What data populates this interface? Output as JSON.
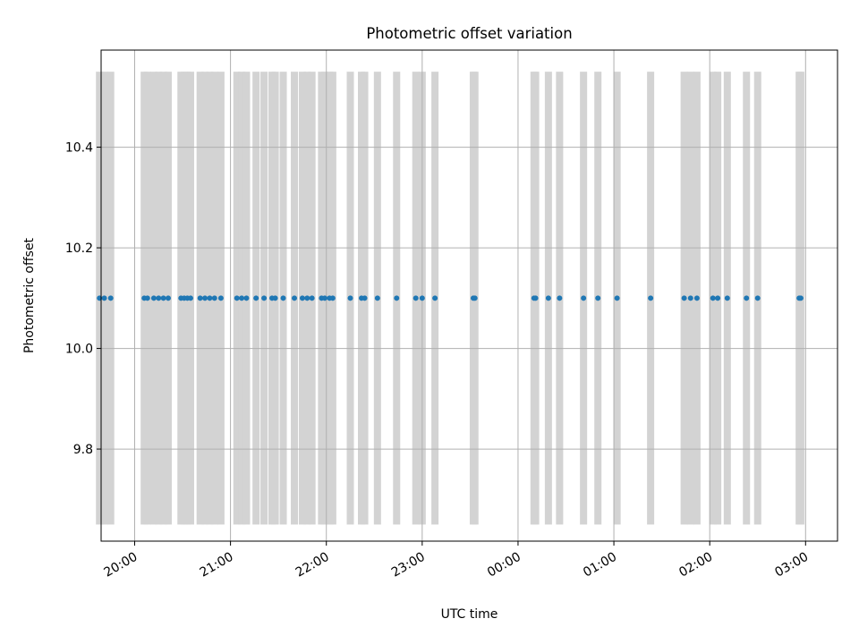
{
  "chart_data": {
    "type": "scatter",
    "title": "Photometric offset variation",
    "xlabel": "UTC time",
    "ylabel": "Photometric offset",
    "x_tick_labels": [
      "20:00",
      "21:00",
      "22:00",
      "23:00",
      "00:00",
      "01:00",
      "02:00",
      "03:00"
    ],
    "y_tick_labels": [
      "9.8",
      "10.0",
      "10.2",
      "10.4"
    ],
    "y_ticks": [
      9.8,
      10.0,
      10.2,
      10.4
    ],
    "ylim": [
      9.617,
      10.593
    ],
    "xlim": [
      "19:39",
      "03:20"
    ],
    "grid": true,
    "band_range": [
      9.65,
      10.55
    ],
    "series": [
      {
        "color": "#1f77b4",
        "points": [
          {
            "x": "19:38",
            "y": 10.1
          },
          {
            "x": "19:41",
            "y": 10.1
          },
          {
            "x": "19:45",
            "y": 10.1
          },
          {
            "x": "20:06",
            "y": 10.1
          },
          {
            "x": "20:08",
            "y": 10.1
          },
          {
            "x": "20:12",
            "y": 10.1
          },
          {
            "x": "20:15",
            "y": 10.1
          },
          {
            "x": "20:18",
            "y": 10.1
          },
          {
            "x": "20:21",
            "y": 10.1
          },
          {
            "x": "20:29",
            "y": 10.1
          },
          {
            "x": "20:31",
            "y": 10.1
          },
          {
            "x": "20:33",
            "y": 10.1
          },
          {
            "x": "20:35",
            "y": 10.1
          },
          {
            "x": "20:41",
            "y": 10.1
          },
          {
            "x": "20:44",
            "y": 10.1
          },
          {
            "x": "20:47",
            "y": 10.1
          },
          {
            "x": "20:50",
            "y": 10.1
          },
          {
            "x": "20:54",
            "y": 10.1
          },
          {
            "x": "21:04",
            "y": 10.1
          },
          {
            "x": "21:07",
            "y": 10.1
          },
          {
            "x": "21:10",
            "y": 10.1
          },
          {
            "x": "21:16",
            "y": 10.1
          },
          {
            "x": "21:21",
            "y": 10.1
          },
          {
            "x": "21:26",
            "y": 10.1
          },
          {
            "x": "21:28",
            "y": 10.1
          },
          {
            "x": "21:33",
            "y": 10.1
          },
          {
            "x": "21:40",
            "y": 10.1
          },
          {
            "x": "21:45",
            "y": 10.1
          },
          {
            "x": "21:48",
            "y": 10.1
          },
          {
            "x": "21:51",
            "y": 10.1
          },
          {
            "x": "21:57",
            "y": 10.1
          },
          {
            "x": "21:59",
            "y": 10.1
          },
          {
            "x": "22:02",
            "y": 10.1
          },
          {
            "x": "22:04",
            "y": 10.1
          },
          {
            "x": "22:15",
            "y": 10.1
          },
          {
            "x": "22:22",
            "y": 10.1
          },
          {
            "x": "22:24",
            "y": 10.1
          },
          {
            "x": "22:32",
            "y": 10.1
          },
          {
            "x": "22:44",
            "y": 10.1
          },
          {
            "x": "22:56",
            "y": 10.1
          },
          {
            "x": "23:00",
            "y": 10.1
          },
          {
            "x": "23:08",
            "y": 10.1
          },
          {
            "x": "23:32",
            "y": 10.1
          },
          {
            "x": "23:33",
            "y": 10.1
          },
          {
            "x": "00:10",
            "y": 10.1
          },
          {
            "x": "00:11",
            "y": 10.1
          },
          {
            "x": "00:19",
            "y": 10.1
          },
          {
            "x": "00:26",
            "y": 10.1
          },
          {
            "x": "00:41",
            "y": 10.1
          },
          {
            "x": "00:50",
            "y": 10.1
          },
          {
            "x": "01:02",
            "y": 10.1
          },
          {
            "x": "01:23",
            "y": 10.1
          },
          {
            "x": "01:44",
            "y": 10.1
          },
          {
            "x": "01:48",
            "y": 10.1
          },
          {
            "x": "01:52",
            "y": 10.1
          },
          {
            "x": "02:02",
            "y": 10.1
          },
          {
            "x": "02:05",
            "y": 10.1
          },
          {
            "x": "02:11",
            "y": 10.1
          },
          {
            "x": "02:23",
            "y": 10.1
          },
          {
            "x": "02:30",
            "y": 10.1
          },
          {
            "x": "02:56",
            "y": 10.1
          },
          {
            "x": "02:57",
            "y": 10.1
          }
        ]
      }
    ],
    "band_color": "#d3d3d3"
  }
}
